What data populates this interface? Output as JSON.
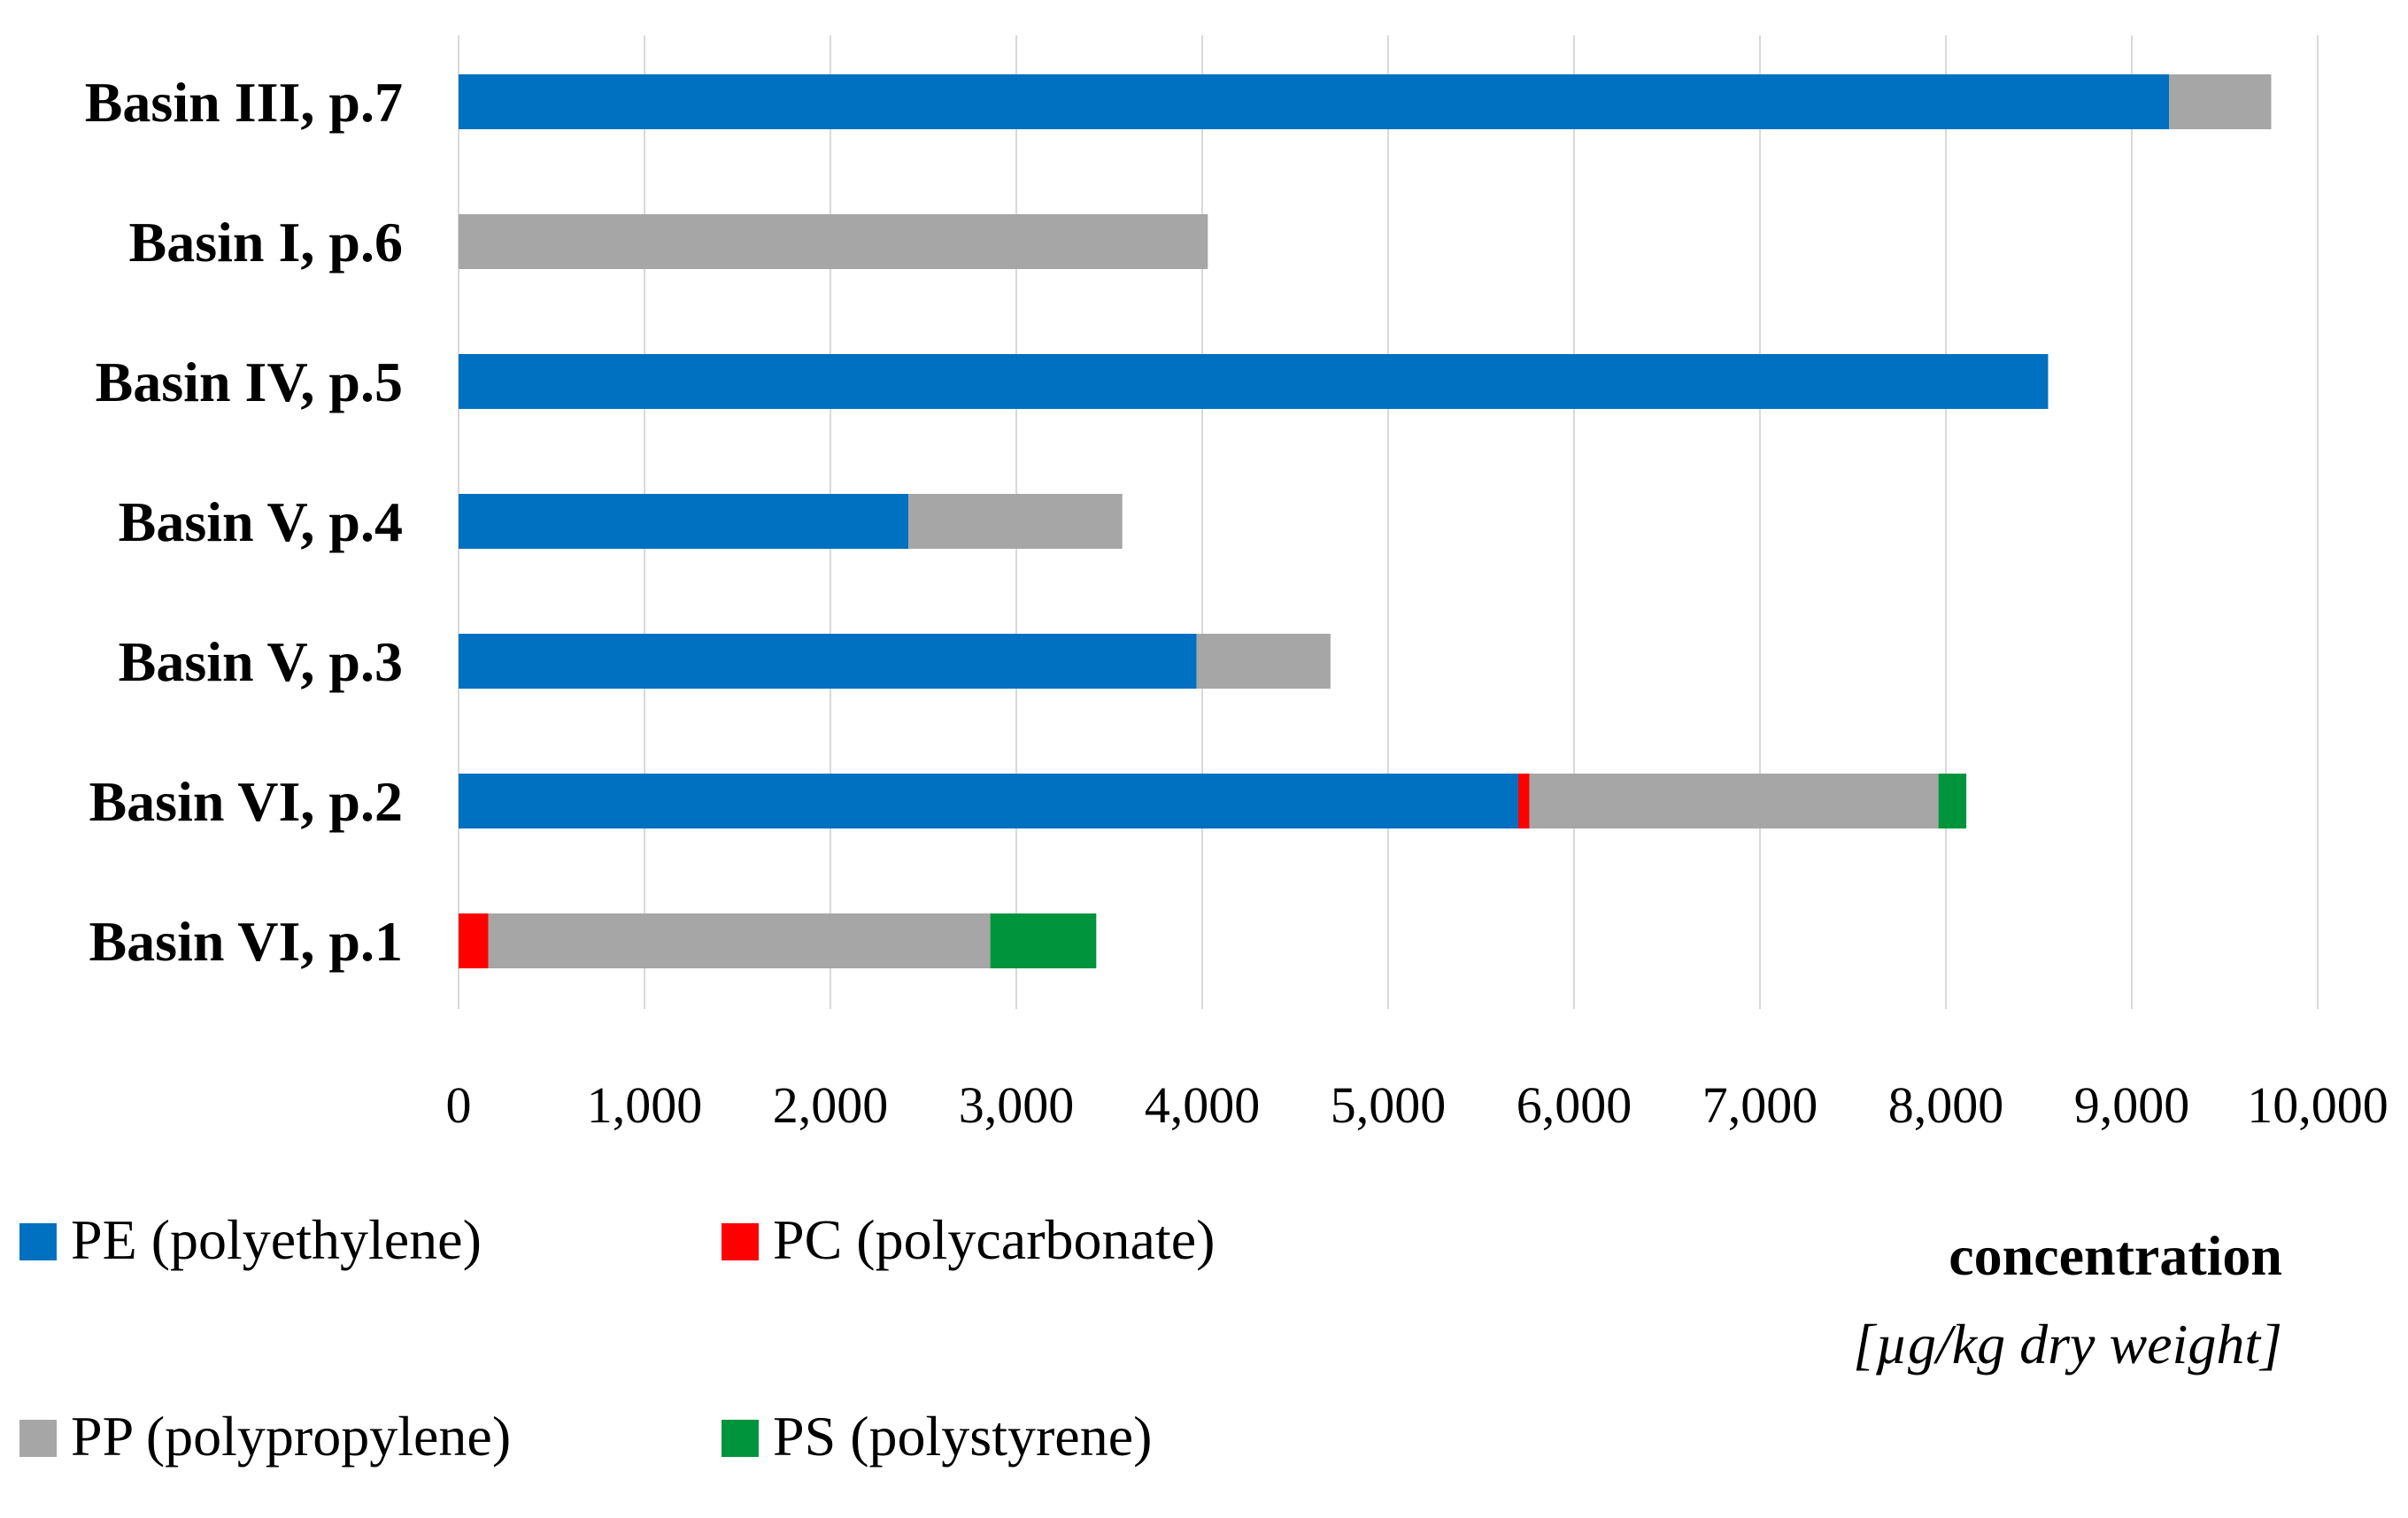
{
  "chart_data": {
    "type": "bar",
    "orientation": "horizontal",
    "stacked": true,
    "title": "",
    "categories": [
      "Basin III, p.7",
      "Basin I, p.6",
      "Basin IV, p.5",
      "Basin V, p.4",
      "Basin V, p.3",
      "Basin VI, p.2",
      "Basin VI, p.1"
    ],
    "series": [
      {
        "name": "PE (polyethylene)",
        "color": "#0070C0",
        "values": [
          9200,
          0,
          8550,
          2420,
          3970,
          5700,
          0
        ]
      },
      {
        "name": "PC (polycarbonate)",
        "color": "#FF0000",
        "values": [
          0,
          0,
          0,
          0,
          0,
          60,
          160
        ]
      },
      {
        "name": "PP (polypropylene)",
        "color": "#A6A6A6",
        "values": [
          550,
          4030,
          0,
          1150,
          720,
          2200,
          2700
        ]
      },
      {
        "name": "PS (polystyrene)",
        "color": "#00943C",
        "values": [
          0,
          0,
          0,
          0,
          0,
          150,
          570
        ]
      }
    ],
    "xlim": [
      0,
      10000
    ],
    "xticks": [
      0,
      1000,
      2000,
      3000,
      4000,
      5000,
      6000,
      7000,
      8000,
      9000,
      10000
    ],
    "xtick_labels": [
      "0",
      "1,000",
      "2,000",
      "3,000",
      "4,000",
      "5,000",
      "6,000",
      "7,000",
      "8,000",
      "9,000",
      "10,000"
    ],
    "xlabel": "concentration",
    "xlabel_unit": "[µg/kg dry weight]",
    "ylabel": "",
    "grid": "vertical",
    "legend_position": "bottom"
  }
}
